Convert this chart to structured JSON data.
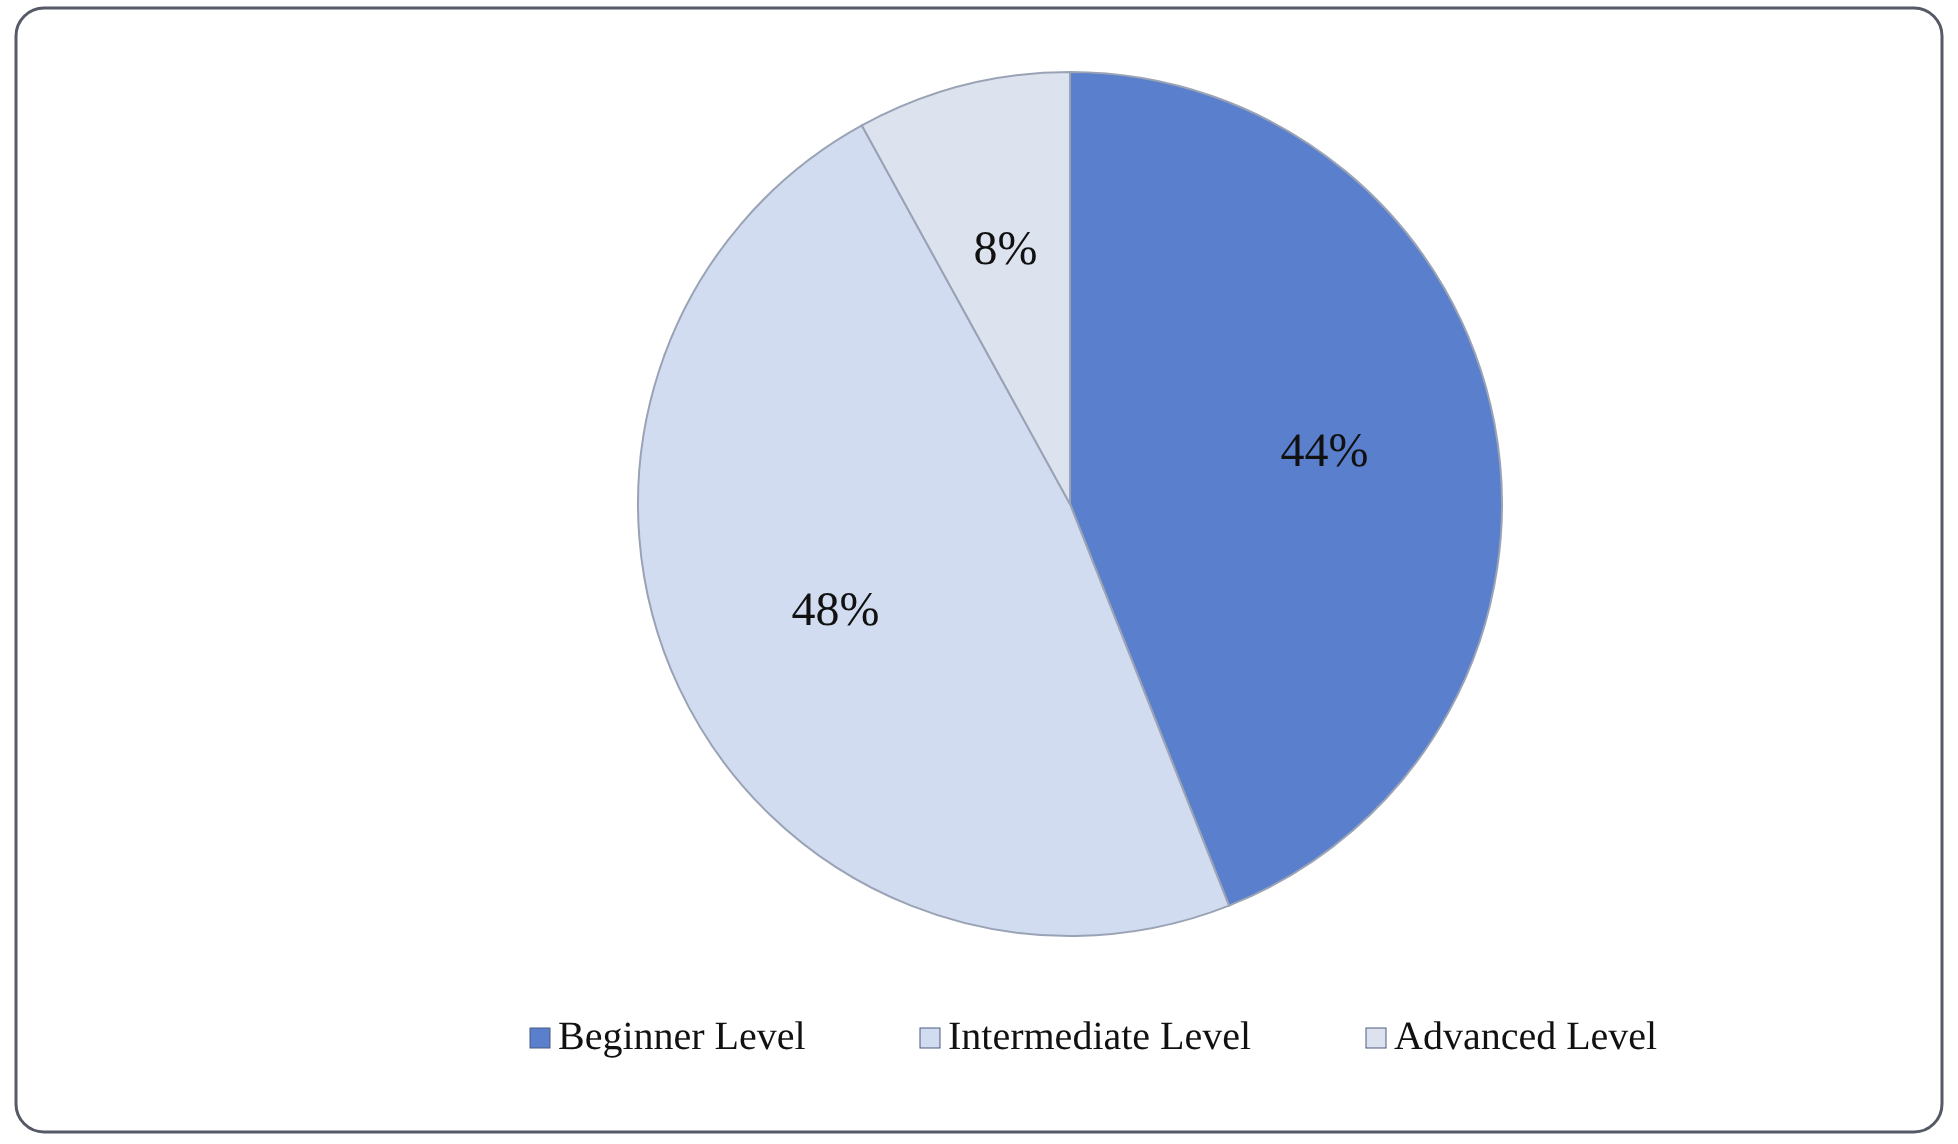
{
  "chart_data": {
    "type": "pie",
    "categories": [
      "Beginner Level",
      "Intermediate Level",
      "Advanced Level"
    ],
    "values": [
      44,
      48,
      8
    ],
    "colors": [
      "#5a7fcc",
      "#d2dcf0",
      "#dce3ef"
    ],
    "value_labels": [
      "44%",
      "48%",
      "8%"
    ],
    "legend": "bottom"
  }
}
